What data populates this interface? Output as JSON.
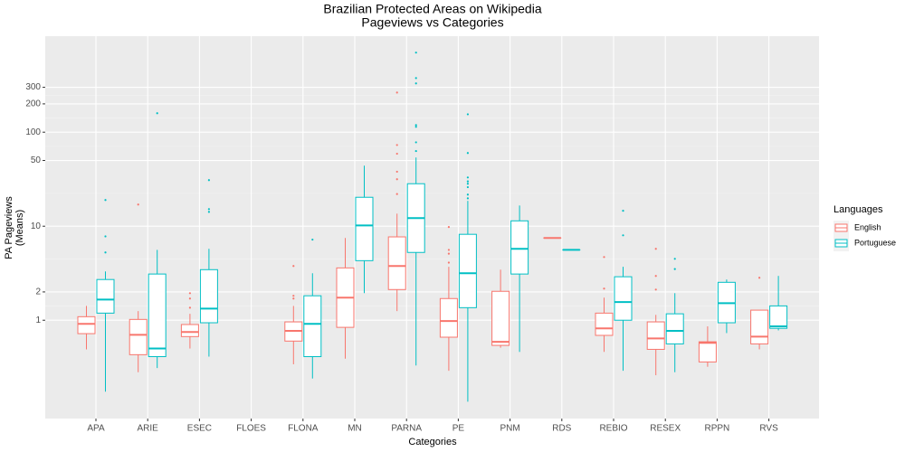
{
  "chart_data": {
    "type": "boxplot",
    "title": "Brazilian Protected Areas on Wikipedia",
    "subtitle": "Pageviews vs Categories",
    "xlabel": "Categories",
    "ylabel": [
      "PA Pageviews",
      "(Means)"
    ],
    "legend_title": "Languages",
    "legend_position": "right",
    "log_scale_y": true,
    "grid": true,
    "ylim": [
      0.09,
      1050
    ],
    "yticks": [
      1,
      2,
      10,
      50,
      100,
      200,
      300
    ],
    "categories": [
      "APA",
      "ARIE",
      "ESEC",
      "FLOES",
      "FLONA",
      "MN",
      "PARNA",
      "PE",
      "PNM",
      "RDS",
      "REBIO",
      "RESEX",
      "RPPN",
      "RVS"
    ],
    "series": [
      {
        "name": "English",
        "color": "#F8766D",
        "min": [
          0.49,
          0.28,
          0.5,
          null,
          0.34,
          0.39,
          1.25,
          0.29,
          0.51,
          7.5,
          0.46,
          0.26,
          0.32,
          0.49
        ],
        "q1": [
          0.72,
          0.43,
          0.67,
          null,
          0.6,
          0.84,
          2.12,
          0.66,
          0.54,
          7.5,
          0.69,
          0.49,
          0.36,
          0.56
        ],
        "median": [
          0.915,
          0.7,
          0.75,
          null,
          0.77,
          1.74,
          3.77,
          0.98,
          0.59,
          7.5,
          0.82,
          0.64,
          0.575,
          0.67
        ],
        "q3": [
          1.09,
          1.02,
          0.9,
          null,
          0.96,
          3.6,
          7.7,
          1.7,
          2.03,
          7.5,
          1.19,
          0.96,
          0.59,
          1.28
        ],
        "max": [
          1.42,
          1.25,
          1.17,
          null,
          1.42,
          7.5,
          13.6,
          3.7,
          3.45,
          7.5,
          1.74,
          1.14,
          0.86,
          1.28
        ],
        "outliers": [
          [],
          [
            17
          ],
          [
            1.94,
            1.7,
            1.36
          ],
          null,
          [
            3.77,
            1.82,
            1.7
          ],
          [],
          [
            264,
            73,
            59,
            38,
            31.6,
            22
          ],
          [
            9.8,
            5.6,
            5.1,
            4.1
          ],
          [],
          [],
          [
            4.7,
            2.17
          ],
          [
            5.75,
            2.96,
            2.12
          ],
          [],
          [
            2.83
          ]
        ]
      },
      {
        "name": "Portuguese",
        "color": "#00BFC4",
        "min": [
          0.174,
          0.31,
          0.41,
          null,
          0.24,
          1.94,
          0.33,
          0.136,
          0.46,
          5.6,
          0.29,
          0.28,
          0.73,
          0.78
        ],
        "q1": [
          1.19,
          0.41,
          0.94,
          null,
          0.41,
          4.3,
          5.26,
          1.36,
          3.1,
          5.6,
          1,
          0.56,
          0.94,
          0.82
        ],
        "median": [
          1.66,
          0.5,
          1.33,
          null,
          0.915,
          10.2,
          12.2,
          3.16,
          5.75,
          5.6,
          1.56,
          0.77,
          1.52,
          0.86
        ],
        "q3": [
          2.71,
          3.1,
          3.45,
          null,
          1.82,
          20.3,
          28.3,
          8.2,
          11.4,
          5.6,
          2.9,
          1.17,
          2.53,
          1.42
        ],
        "max": [
          3.3,
          5.6,
          5.75,
          null,
          3.16,
          44,
          53.8,
          18.6,
          16.6,
          5.6,
          3.7,
          1.94,
          2.71,
          2.96
        ],
        "outliers": [
          [
            19,
            7.8,
            5.26
          ],
          [
            159
          ],
          [
            30.9,
            15.2,
            14.2
          ],
          null,
          [
            7.2
          ],
          [],
          [
            702,
            376,
            330,
            119,
            114,
            78,
            63
          ],
          [
            155,
            60,
            33,
            30,
            28.3,
            26,
            21.7,
            19.8
          ],
          [],
          [],
          [
            14.6,
            8
          ],
          [
            4.5,
            3.5
          ],
          [],
          []
        ]
      }
    ]
  }
}
